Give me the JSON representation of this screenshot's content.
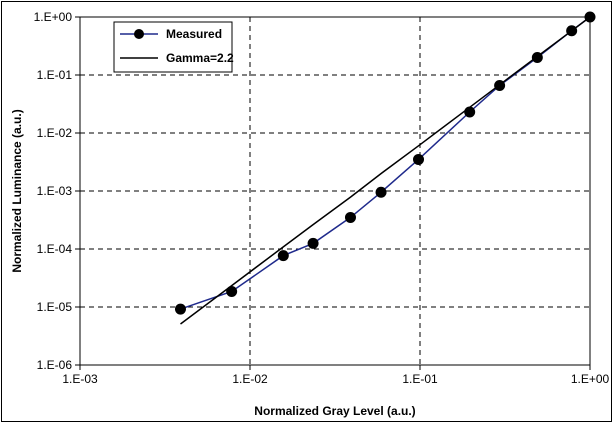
{
  "chart_data": {
    "type": "line",
    "xlabel": "Normalized Gray Level (a.u.)",
    "ylabel": "Normalized Luminance (a.u.)",
    "xscale": "log",
    "yscale": "log",
    "xlim": [
      0.001,
      1
    ],
    "ylim": [
      1e-06,
      1
    ],
    "grid": true,
    "legend_position": "top-left",
    "x_tick_labels": [
      "1.E-03",
      "1.E-02",
      "1.E-01",
      "1.E+00"
    ],
    "y_tick_labels": [
      "1.E-06",
      "1.E-05",
      "1.E-04",
      "1.E-03",
      "1.E-02",
      "1.E-01",
      "1.E+00"
    ],
    "series": [
      {
        "name": "Measured",
        "color": "#1f2a8c",
        "marker": "circle",
        "x": [
          0.0039,
          0.0078,
          0.0157,
          0.0235,
          0.039,
          0.059,
          0.098,
          0.196,
          0.294,
          0.49,
          0.78,
          1.0
        ],
        "y": [
          9.2e-06,
          1.85e-05,
          7.7e-05,
          0.000125,
          0.00035,
          0.00095,
          0.0035,
          0.023,
          0.066,
          0.2,
          0.58,
          1.0
        ]
      },
      {
        "name": "Gamma=2.2",
        "color": "#000000",
        "marker": "none",
        "x": [
          0.0039,
          0.0078,
          0.0157,
          0.0235,
          0.039,
          0.059,
          0.098,
          0.196,
          0.294,
          0.49,
          0.78,
          1.0
        ],
        "y": [
          5.1e-06,
          2.34e-05,
          0.0001086,
          0.0002637,
          0.0007851,
          0.0019955,
          0.006008,
          0.027749,
          0.067755,
          0.208054,
          0.579004,
          1.0
        ]
      }
    ]
  }
}
